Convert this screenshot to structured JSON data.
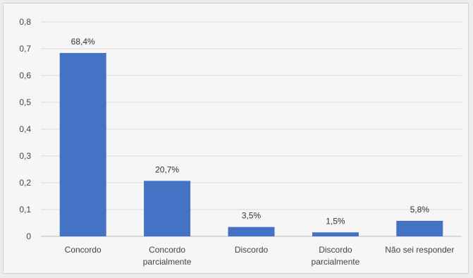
{
  "chart_data": {
    "type": "bar",
    "categories": [
      [
        "Concordo"
      ],
      [
        "Concordo",
        "parcialmente"
      ],
      [
        "Discordo"
      ],
      [
        "Discordo",
        "parcialmente"
      ],
      [
        "Não sei responder"
      ]
    ],
    "values": [
      0.684,
      0.207,
      0.035,
      0.015,
      0.058
    ],
    "data_labels": [
      "68,4%",
      "20,7%",
      "3,5%",
      "1,5%",
      "5,8%"
    ],
    "ylim": [
      0,
      0.8
    ],
    "yticks": [
      "0",
      "0,1",
      "0,2",
      "0,3",
      "0,4",
      "0,5",
      "0,6",
      "0,7",
      "0,8"
    ],
    "grid": true,
    "bar_color": "#4472c4",
    "gridline_color": "#d9d9d9",
    "axis_color": "#bfbfbf"
  }
}
